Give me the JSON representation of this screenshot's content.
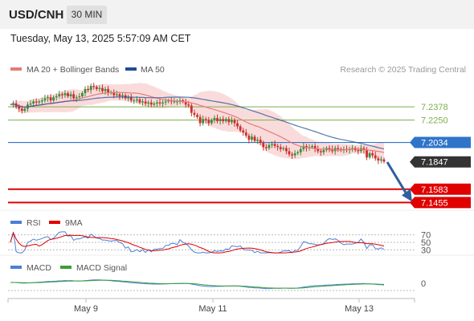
{
  "header": {
    "pair": "USD/CNH",
    "timeframe": "30 MIN",
    "datetime": "Tuesday, May 13, 2025 5:57:09 AM CET"
  },
  "colors": {
    "price_line": "#2f74c9",
    "target_line": "#e00000",
    "level_green": "#7cae4a",
    "current_price_bg": "#333333",
    "ma20": "#e57b7b",
    "ma50": "#1f4e96",
    "arrow": "#2f5f9e",
    "rsi": "#4a7fd4",
    "rsi_9ma": "#e00000",
    "macd": "#4a7fd4",
    "macd_signal": "#3a9e3a"
  },
  "chart_data": [
    {
      "type": "candlestick",
      "title": "USD/CNH 30 MIN",
      "legend": [
        {
          "name": "MA 20 + Bollinger Bands",
          "color": "#e57b7b"
        },
        {
          "name": "MA 50",
          "color": "#1f4e96"
        }
      ],
      "watermark": "Research © 2025 Trading Central",
      "ylim": [
        7.138,
        7.265
      ],
      "x_ticks": [
        "May 9",
        "May 11",
        "May 13"
      ],
      "levels": [
        {
          "value": 7.2378,
          "label": "7.2378",
          "style": "green"
        },
        {
          "value": 7.225,
          "label": "7.2250",
          "style": "green"
        },
        {
          "value": 7.2034,
          "label": "7.2034",
          "style": "pivot"
        },
        {
          "value": 7.1847,
          "label": "7.1847",
          "style": "current"
        },
        {
          "value": 7.1583,
          "label": "7.1583",
          "style": "target"
        },
        {
          "value": 7.1455,
          "label": "7.1455",
          "style": "target"
        }
      ],
      "close_series": [
        7.24,
        7.241,
        7.238,
        7.236,
        7.234,
        7.236,
        7.24,
        7.241,
        7.243,
        7.242,
        7.243,
        7.244,
        7.246,
        7.247,
        7.244,
        7.247,
        7.248,
        7.25,
        7.249,
        7.251,
        7.248,
        7.25,
        7.246,
        7.247,
        7.248,
        7.251,
        7.255,
        7.254,
        7.258,
        7.257,
        7.255,
        7.256,
        7.253,
        7.255,
        7.251,
        7.252,
        7.249,
        7.25,
        7.248,
        7.249,
        7.246,
        7.247,
        7.244,
        7.244,
        7.245,
        7.242,
        7.243,
        7.241,
        7.242,
        7.24,
        7.241,
        7.242,
        7.241,
        7.242,
        7.243,
        7.244,
        7.243,
        7.243,
        7.243,
        7.244,
        7.243,
        7.24,
        7.239,
        7.232,
        7.23,
        7.228,
        7.222,
        7.226,
        7.225,
        7.222,
        7.225,
        7.227,
        7.224,
        7.226,
        7.224,
        7.226,
        7.223,
        7.225,
        7.222,
        7.219,
        7.215,
        7.213,
        7.21,
        7.206,
        7.209,
        7.205,
        7.206,
        7.203,
        7.199,
        7.198,
        7.201,
        7.202,
        7.2,
        7.199,
        7.197,
        7.198,
        7.195,
        7.192,
        7.191,
        7.193,
        7.194,
        7.197,
        7.2,
        7.198,
        7.199,
        7.2,
        7.197,
        7.195,
        7.194,
        7.196,
        7.198,
        7.197,
        7.195,
        7.198,
        7.197,
        7.196,
        7.197,
        7.196,
        7.197,
        7.198,
        7.196,
        7.195,
        7.198,
        7.196,
        7.189,
        7.193,
        7.191,
        7.188,
        7.186,
        7.187,
        7.185
      ],
      "forecast_arrow": {
        "from": 7.186,
        "to": 7.1455
      }
    },
    {
      "type": "line",
      "title": "RSI",
      "legend": [
        {
          "name": "RSI",
          "color": "#4a7fd4"
        },
        {
          "name": "9MA",
          "color": "#e00000"
        }
      ],
      "levels": [
        "70",
        "50",
        "30"
      ],
      "ylim": [
        20,
        80
      ]
    },
    {
      "type": "line",
      "title": "MACD",
      "legend": [
        {
          "name": "MACD",
          "color": "#4a7fd4"
        },
        {
          "name": "MACD Signal",
          "color": "#3a9e3a"
        }
      ],
      "levels": [
        "0"
      ]
    }
  ]
}
